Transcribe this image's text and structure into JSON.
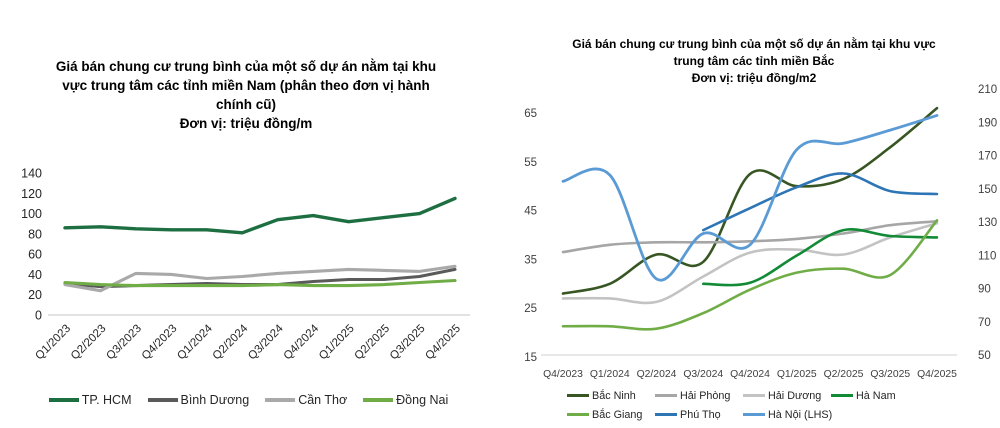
{
  "page": {
    "background": "#ffffff",
    "axis_line_color": "#d9d9d9",
    "tick_label_color": "#3f3f3f"
  },
  "chart_data": [
    {
      "type": "line",
      "title": "Giá bán chung cư trung bình của một số dự án nằm tại khu vực trung tâm các tỉnh miền Nam (phân theo đơn vị hành chính cũ)",
      "unit_label": "Đơn vị: triệu đồng/m",
      "line_style": "straight",
      "grid": "baseline-only",
      "legend_position": "bottom",
      "ylim": [
        0,
        140
      ],
      "y_ticks": [
        0,
        20,
        40,
        60,
        80,
        100,
        120,
        140
      ],
      "categories": [
        "Q1/2023",
        "Q2/2023",
        "Q3/2023",
        "Q4/2023",
        "Q1/2024",
        "Q2/2024",
        "Q3/2024",
        "Q4/2024",
        "Q1/2025",
        "Q2/2025",
        "Q3/2025",
        "Q4/2025"
      ],
      "series": [
        {
          "name": "TP. HCM",
          "color": "#1d6f42",
          "values": [
            86,
            87,
            85,
            84,
            84,
            81,
            94,
            98,
            92,
            96,
            100,
            115
          ]
        },
        {
          "name": "Bình Dương",
          "color": "#5a5a5a",
          "values": [
            31,
            28,
            29,
            30,
            31,
            30,
            30,
            33,
            35,
            35,
            38,
            45
          ]
        },
        {
          "name": "Cần Thơ",
          "color": "#a9a9a9",
          "values": [
            30,
            24,
            41,
            40,
            36,
            38,
            41,
            43,
            45,
            44,
            43,
            48
          ]
        },
        {
          "name": "Đồng Nai",
          "color": "#70ad47",
          "values": [
            32,
            30,
            29,
            29,
            29,
            29,
            30,
            29,
            29,
            30,
            32,
            34
          ]
        }
      ]
    },
    {
      "type": "line",
      "title": "Giá bán chung cư trung bình của một số dự án nằm tại khu vực trung tâm các tỉnh miền Bắc",
      "unit_label": "Đơn vị: triệu đồng/m2",
      "line_style": "smooth",
      "grid": "baseline-only",
      "legend_position": "bottom",
      "ylim_left": [
        15,
        65
      ],
      "y_ticks_left": [
        15,
        25,
        35,
        45,
        55,
        65
      ],
      "y_ticks_right": [
        50,
        70,
        90,
        110,
        130,
        150,
        170,
        190,
        210
      ],
      "categories": [
        "Q4/2023",
        "Q1/2024",
        "Q2/2024",
        "Q3/2024",
        "Q4/2024",
        "Q1/2025",
        "Q2/2025",
        "Q3/2025",
        "Q4/2025"
      ],
      "series": [
        {
          "name": "Bắc Ninh",
          "color": "#375623",
          "values": [
            28,
            30,
            36,
            34.5,
            52.5,
            50,
            51.5,
            58,
            66
          ]
        },
        {
          "name": "Hải Phòng",
          "color": "#a6a6a6",
          "values": [
            36.5,
            38,
            38.5,
            38.5,
            38.7,
            39.2,
            40.3,
            42,
            42.8
          ]
        },
        {
          "name": "Hải Dương",
          "color": "#c3c3c3",
          "values": [
            27,
            27,
            26.3,
            31.5,
            36.4,
            37,
            36,
            39.5,
            42.4
          ]
        },
        {
          "name": "Hà Nam",
          "color": "#128a36",
          "values": [
            null,
            null,
            null,
            30,
            30.2,
            35.8,
            41,
            39.8,
            39.5
          ]
        },
        {
          "name": "Bắc Giang",
          "color": "#70ad47",
          "values": [
            21.3,
            21.3,
            20.8,
            24,
            28.8,
            32.3,
            33.1,
            31.8,
            43
          ]
        },
        {
          "name": "Phú Thọ",
          "color": "#2e75b6",
          "values": [
            null,
            null,
            null,
            41,
            45.5,
            49.8,
            52.6,
            49,
            48.4
          ]
        },
        {
          "name": "Hà Nội (LHS)",
          "color": "#5b9bd5",
          "values": [
            51,
            52.3,
            31,
            40.3,
            38,
            57.5,
            58.8,
            61.5,
            64.5
          ]
        }
      ]
    }
  ]
}
